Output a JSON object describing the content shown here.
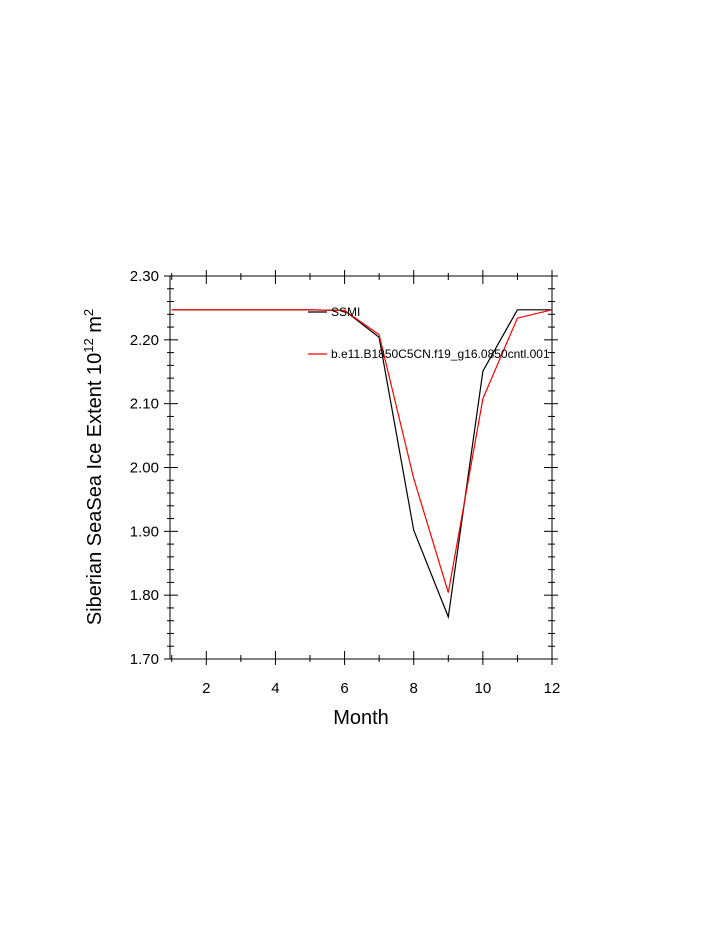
{
  "chart_data": {
    "type": "line",
    "xlabel": "Month",
    "ylabel_main": "Siberian SeaSea Ice Extent 10",
    "ylabel_exp1": "12",
    "ylabel_unit": " m",
    "ylabel_exp2": "2",
    "xlim": [
      0.95,
      12
    ],
    "ylim": [
      1.7,
      2.3
    ],
    "xticks": [
      2,
      4,
      6,
      8,
      10,
      12
    ],
    "xtick_labels": [
      "2",
      "4",
      "6",
      "8",
      "10",
      "12"
    ],
    "yticks": [
      1.7,
      1.8,
      1.9,
      2.0,
      2.1,
      2.2,
      2.3
    ],
    "ytick_labels": [
      "1.70",
      "1.80",
      "1.90",
      "2.00",
      "2.10",
      "2.20",
      "2.30"
    ],
    "x": [
      1,
      2,
      3,
      4,
      5,
      6,
      7,
      8,
      9,
      10,
      11,
      12
    ],
    "series": [
      {
        "name": "SSMI",
        "color": "#000000",
        "values": [
          2.247,
          2.247,
          2.247,
          2.247,
          2.247,
          2.246,
          2.204,
          1.902,
          1.766,
          2.151,
          2.247,
          2.247
        ]
      },
      {
        "name": "b.e11.B1850C5CN.f19_g16.0850cntl.001",
        "color": "#ff0000",
        "values": [
          2.247,
          2.247,
          2.247,
          2.247,
          2.247,
          2.246,
          2.208,
          1.983,
          1.804,
          2.108,
          2.234,
          2.247
        ]
      }
    ],
    "legend_position": "top-right"
  }
}
